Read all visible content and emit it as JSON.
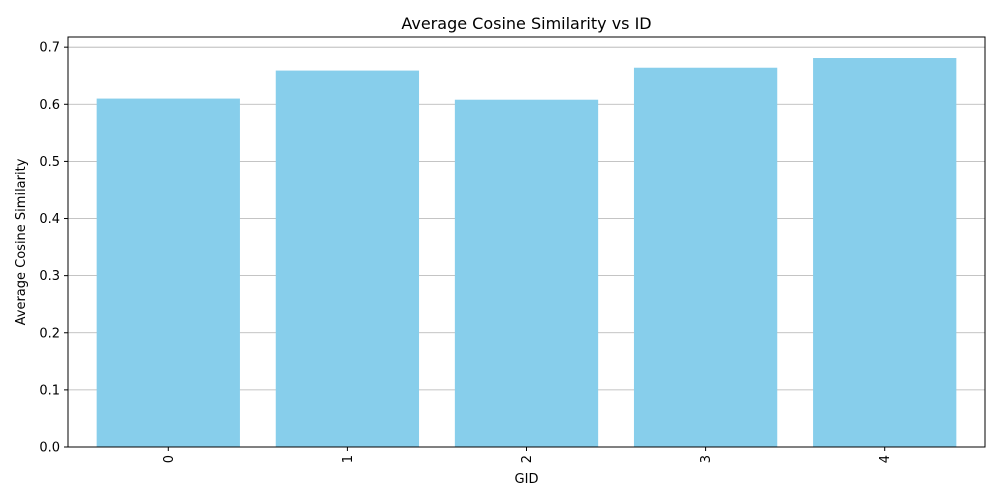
{
  "chart_data": {
    "type": "bar",
    "title": "Average Cosine Similarity vs ID",
    "xlabel": "GID",
    "ylabel": "Average Cosine Similarity",
    "categories": [
      "0",
      "1",
      "2",
      "3",
      "4"
    ],
    "values": [
      0.61,
      0.659,
      0.608,
      0.664,
      0.681
    ],
    "ylim": [
      0,
      0.7178
    ],
    "yticks": [
      0.0,
      0.1,
      0.2,
      0.3,
      0.4,
      0.5,
      0.6,
      0.7
    ],
    "ytick_labels": [
      "0.0",
      "0.1",
      "0.2",
      "0.3",
      "0.4",
      "0.5",
      "0.6",
      "0.7"
    ],
    "xtick_rotation": "vertical",
    "grid": "y-axis on",
    "legend": "none",
    "colors": {
      "bar": "#87ceeb",
      "grid": "#b0b0b0",
      "axis": "#000000",
      "text": "#000000"
    }
  }
}
